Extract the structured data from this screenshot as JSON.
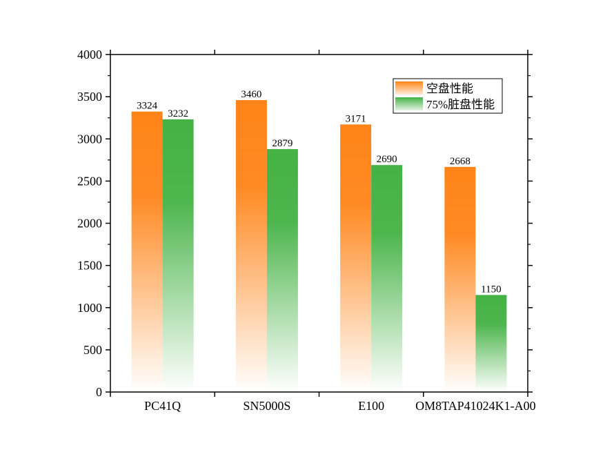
{
  "chart_data": {
    "type": "bar",
    "categories": [
      "PC41Q",
      "SN5000S",
      "E100",
      "OM8TAP41024K1-A00"
    ],
    "series": [
      {
        "name": "空盘性能",
        "values": [
          3324,
          3460,
          3171,
          2668
        ],
        "color": "#ff8418"
      },
      {
        "name": "75%脏盘性能",
        "values": [
          3232,
          2879,
          2690,
          1150
        ],
        "color": "#44b244"
      }
    ],
    "ylim": [
      0,
      4000
    ],
    "yticks": [
      0,
      500,
      1000,
      1500,
      2000,
      2500,
      3000,
      3500,
      4000
    ],
    "grid": false,
    "legend_position": "top-right"
  }
}
